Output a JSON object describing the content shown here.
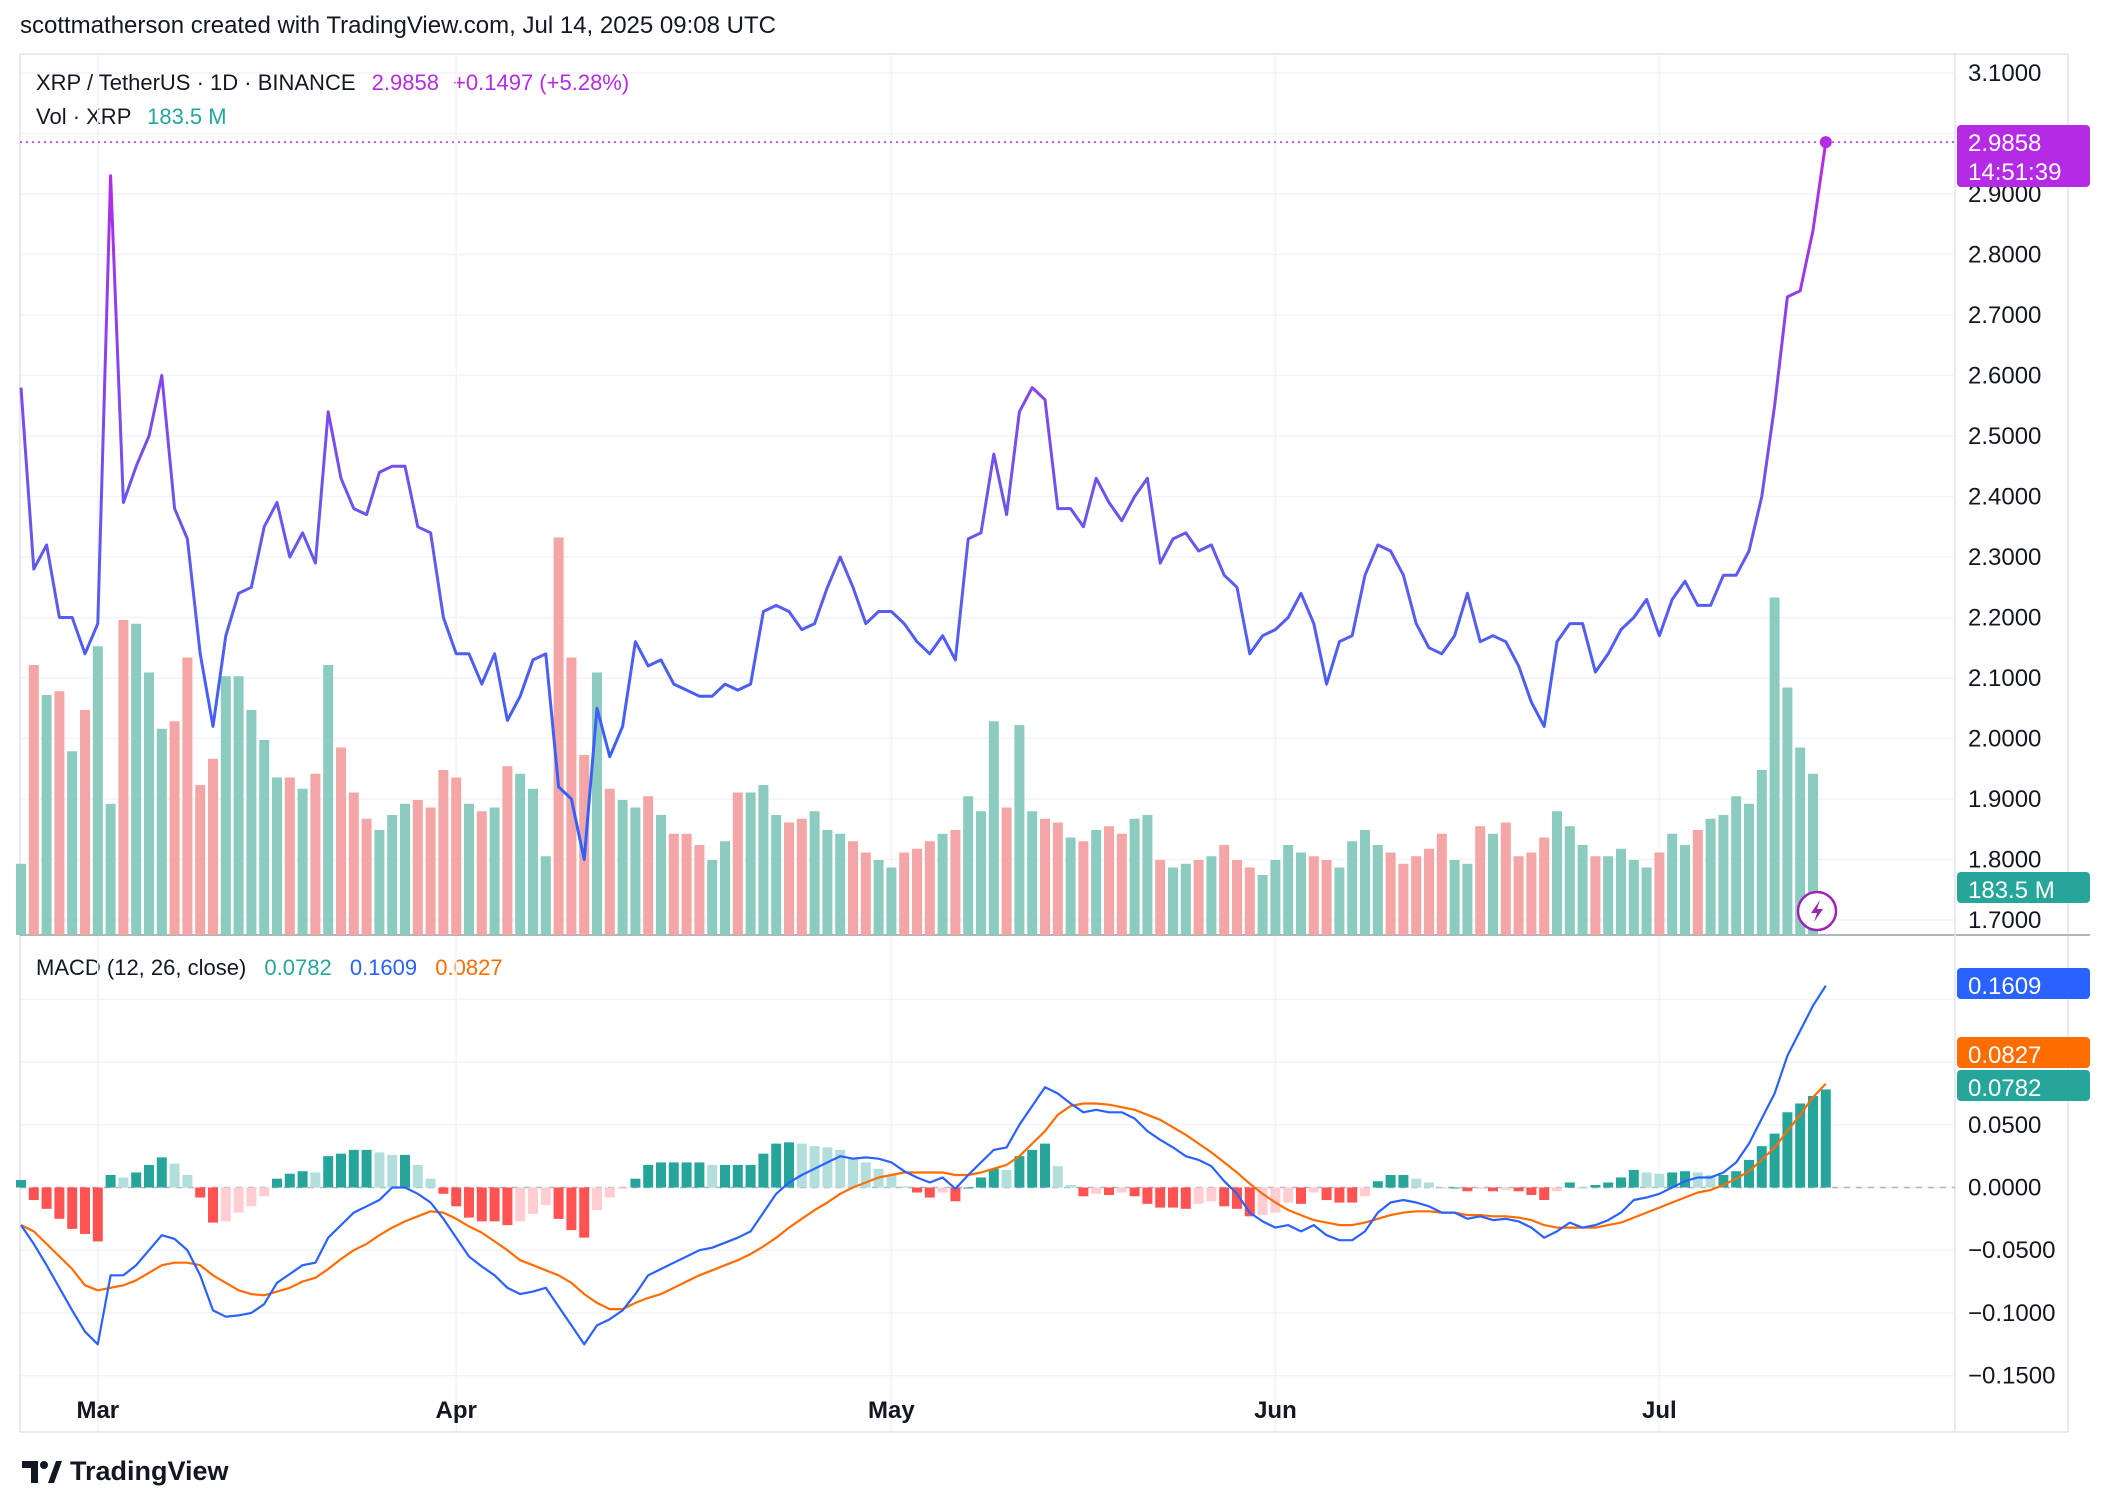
{
  "header": {
    "credit": "scottmatherson created with TradingView.com, Jul 14, 2025 09:08 UTC"
  },
  "legend": {
    "symbol": "XRP / TetherUS · 1D · BINANCE",
    "last_price": "2.9858",
    "change": "+0.1497 (+5.28%)",
    "volume_label": "Vol · XRP",
    "volume_value": "183.5 M"
  },
  "macd_legend": {
    "label": "MACD (12, 26, close)",
    "histogram": "0.0782",
    "macd": "0.1609",
    "signal": "0.0827"
  },
  "price_tags": {
    "price": "2.9858",
    "countdown": "14:51:39",
    "volume": "183.5 M",
    "macd": "0.1609",
    "signal": "0.0827",
    "histogram": "0.0782"
  },
  "footer": {
    "logo_text": "TradingView"
  },
  "colors": {
    "price_line_purple": "#8B3CF7",
    "price_line_blue": "#2962FF",
    "price_tag": "#B52BE5",
    "vol_up": "#8CCBBF",
    "vol_down": "#F4A5A5",
    "hist_up_strong": "#26A69A",
    "hist_up_weak": "#B2DFDB",
    "hist_down_strong": "#FF5252",
    "hist_down_weak": "#FFCDD2",
    "macd_line": "#2962FF",
    "signal_line": "#FF6D00"
  },
  "chart_data": [
    {
      "type": "line",
      "title": "XRP / TetherUS · 1D · BINANCE",
      "x_ticks": [
        "Mar",
        "Apr",
        "May",
        "Jun",
        "Jul"
      ],
      "y_ticks": [
        "3.1000",
        "2.9000",
        "2.8000",
        "2.7000",
        "2.6000",
        "2.5000",
        "2.4000",
        "2.3000",
        "2.2000",
        "2.1000",
        "2.0000",
        "1.9000",
        "1.8000",
        "1.7000"
      ],
      "ylim": [
        1.7,
        3.1
      ],
      "series": [
        {
          "name": "XRP / TetherUS",
          "start_date": "2025-02-23",
          "values": [
            2.58,
            2.28,
            2.32,
            2.2,
            2.2,
            2.14,
            2.19,
            2.93,
            2.39,
            2.45,
            2.5,
            2.6,
            2.38,
            2.33,
            2.14,
            2.02,
            2.17,
            2.24,
            2.25,
            2.35,
            2.39,
            2.3,
            2.34,
            2.29,
            2.54,
            2.43,
            2.38,
            2.37,
            2.44,
            2.45,
            2.45,
            2.35,
            2.34,
            2.2,
            2.14,
            2.14,
            2.09,
            2.14,
            2.03,
            2.07,
            2.13,
            2.14,
            1.92,
            1.9,
            1.8,
            2.05,
            1.97,
            2.02,
            2.16,
            2.12,
            2.13,
            2.09,
            2.08,
            2.07,
            2.07,
            2.09,
            2.08,
            2.09,
            2.21,
            2.22,
            2.21,
            2.18,
            2.19,
            2.25,
            2.3,
            2.25,
            2.19,
            2.21,
            2.21,
            2.19,
            2.16,
            2.14,
            2.17,
            2.13,
            2.33,
            2.34,
            2.47,
            2.37,
            2.54,
            2.58,
            2.56,
            2.38,
            2.38,
            2.35,
            2.43,
            2.39,
            2.36,
            2.4,
            2.43,
            2.29,
            2.33,
            2.34,
            2.31,
            2.32,
            2.27,
            2.25,
            2.14,
            2.17,
            2.18,
            2.2,
            2.24,
            2.19,
            2.09,
            2.16,
            2.17,
            2.27,
            2.32,
            2.31,
            2.27,
            2.19,
            2.15,
            2.14,
            2.17,
            2.24,
            2.16,
            2.17,
            2.16,
            2.12,
            2.06,
            2.02,
            2.16,
            2.19,
            2.19,
            2.11,
            2.14,
            2.18,
            2.2,
            2.23,
            2.17,
            2.23,
            2.26,
            2.22,
            2.22,
            2.27,
            2.27,
            2.31,
            2.4,
            2.55,
            2.73,
            2.74,
            2.84,
            2.9858
          ]
        }
      ]
    },
    {
      "type": "bar",
      "title": "Vol · XRP",
      "unit": "M",
      "last_value": 183.5,
      "series": [
        {
          "name": "Vol · XRP",
          "values": [
            95,
            360,
            320,
            325,
            245,
            300,
            385,
            175,
            420,
            415,
            350,
            275,
            285,
            370,
            200,
            235,
            345,
            345,
            300,
            260,
            210,
            210,
            195,
            215,
            360,
            250,
            190,
            155,
            140,
            160,
            175,
            180,
            170,
            220,
            210,
            175,
            165,
            170,
            225,
            215,
            195,
            105,
            530,
            370,
            240,
            350,
            195,
            180,
            170,
            185,
            160,
            135,
            135,
            120,
            100,
            125,
            190,
            190,
            200,
            160,
            150,
            155,
            165,
            140,
            135,
            125,
            110,
            100,
            90,
            110,
            115,
            125,
            135,
            140,
            185,
            165,
            285,
            170,
            280,
            165,
            155,
            150,
            130,
            125,
            140,
            145,
            135,
            155,
            160,
            100,
            90,
            95,
            100,
            105,
            120,
            100,
            90,
            80,
            100,
            120,
            110,
            105,
            100,
            90,
            125,
            140,
            120,
            110,
            95,
            105,
            115,
            135,
            100,
            95,
            145,
            135,
            150,
            105,
            110,
            130,
            165,
            145,
            120,
            105,
            105,
            115,
            100,
            90,
            110,
            135,
            120,
            140,
            155,
            160,
            185,
            175,
            220,
            450,
            330,
            250,
            215
          ]
        }
      ]
    },
    {
      "type": "line",
      "title": "MACD (12, 26, close)",
      "y_ticks": [
        "0.1609",
        "0.0827",
        "0.0782",
        "0.0500",
        "0.0000",
        "−0.0500",
        "−0.1000",
        "−0.1500"
      ],
      "ylim": [
        -0.15,
        0.16
      ],
      "series": [
        {
          "name": "MACD",
          "values": [
            -0.03,
            -0.045,
            -0.062,
            -0.08,
            -0.098,
            -0.115,
            -0.125,
            -0.07,
            -0.07,
            -0.062,
            -0.05,
            -0.038,
            -0.041,
            -0.05,
            -0.07,
            -0.098,
            -0.103,
            -0.102,
            -0.1,
            -0.093,
            -0.076,
            -0.069,
            -0.062,
            -0.06,
            -0.04,
            -0.03,
            -0.02,
            -0.015,
            -0.01,
            0.0,
            0.0,
            -0.005,
            -0.012,
            -0.025,
            -0.04,
            -0.055,
            -0.063,
            -0.07,
            -0.08,
            -0.085,
            -0.083,
            -0.08,
            -0.095,
            -0.11,
            -0.125,
            -0.11,
            -0.105,
            -0.098,
            -0.085,
            -0.07,
            -0.065,
            -0.06,
            -0.055,
            -0.05,
            -0.048,
            -0.044,
            -0.04,
            -0.035,
            -0.02,
            -0.005,
            0.004,
            0.01,
            0.015,
            0.02,
            0.025,
            0.023,
            0.024,
            0.023,
            0.02,
            0.013,
            0.008,
            0.004,
            0.008,
            -0.001,
            0.01,
            0.02,
            0.03,
            0.032,
            0.05,
            0.065,
            0.08,
            0.075,
            0.067,
            0.06,
            0.062,
            0.06,
            0.06,
            0.055,
            0.045,
            0.038,
            0.032,
            0.025,
            0.022,
            0.017,
            0.005,
            -0.005,
            -0.02,
            -0.027,
            -0.032,
            -0.03,
            -0.035,
            -0.03,
            -0.038,
            -0.042,
            -0.042,
            -0.035,
            -0.02,
            -0.012,
            -0.01,
            -0.012,
            -0.015,
            -0.02,
            -0.02,
            -0.025,
            -0.023,
            -0.026,
            -0.025,
            -0.027,
            -0.032,
            -0.04,
            -0.035,
            -0.028,
            -0.032,
            -0.03,
            -0.026,
            -0.02,
            -0.01,
            -0.008,
            -0.005,
            0.0,
            0.005,
            0.008,
            0.008,
            0.012,
            0.02,
            0.035,
            0.055,
            0.075,
            0.105,
            0.125,
            0.145,
            0.1609
          ]
        },
        {
          "name": "Signal",
          "values": [
            -0.03,
            -0.035,
            -0.045,
            -0.055,
            -0.065,
            -0.078,
            -0.082,
            -0.08,
            -0.078,
            -0.074,
            -0.068,
            -0.062,
            -0.06,
            -0.06,
            -0.062,
            -0.07,
            -0.076,
            -0.082,
            -0.085,
            -0.086,
            -0.083,
            -0.08,
            -0.075,
            -0.072,
            -0.065,
            -0.057,
            -0.05,
            -0.045,
            -0.038,
            -0.032,
            -0.027,
            -0.023,
            -0.019,
            -0.02,
            -0.025,
            -0.031,
            -0.036,
            -0.043,
            -0.05,
            -0.058,
            -0.062,
            -0.066,
            -0.07,
            -0.076,
            -0.085,
            -0.092,
            -0.097,
            -0.097,
            -0.092,
            -0.088,
            -0.085,
            -0.08,
            -0.075,
            -0.07,
            -0.066,
            -0.062,
            -0.058,
            -0.053,
            -0.047,
            -0.04,
            -0.032,
            -0.025,
            -0.018,
            -0.012,
            -0.005,
            0.0,
            0.004,
            0.008,
            0.01,
            0.012,
            0.012,
            0.012,
            0.012,
            0.01,
            0.01,
            0.012,
            0.015,
            0.018,
            0.025,
            0.035,
            0.045,
            0.058,
            0.065,
            0.067,
            0.067,
            0.066,
            0.064,
            0.062,
            0.058,
            0.054,
            0.048,
            0.042,
            0.035,
            0.028,
            0.02,
            0.012,
            0.003,
            -0.005,
            -0.012,
            -0.018,
            -0.022,
            -0.026,
            -0.028,
            -0.03,
            -0.03,
            -0.028,
            -0.025,
            -0.022,
            -0.02,
            -0.019,
            -0.019,
            -0.02,
            -0.02,
            -0.022,
            -0.022,
            -0.023,
            -0.023,
            -0.024,
            -0.026,
            -0.03,
            -0.032,
            -0.032,
            -0.032,
            -0.032,
            -0.03,
            -0.028,
            -0.024,
            -0.02,
            -0.016,
            -0.012,
            -0.008,
            -0.004,
            -0.002,
            0.002,
            0.007,
            0.013,
            0.022,
            0.032,
            0.045,
            0.058,
            0.072,
            0.0827
          ]
        },
        {
          "name": "Histogram",
          "type": "bar",
          "values": [
            0.006,
            -0.01,
            -0.017,
            -0.025,
            -0.033,
            -0.037,
            -0.043,
            0.01,
            0.008,
            0.012,
            0.018,
            0.024,
            0.019,
            0.01,
            -0.008,
            -0.028,
            -0.027,
            -0.02,
            -0.015,
            -0.007,
            0.007,
            0.011,
            0.013,
            0.012,
            0.025,
            0.027,
            0.03,
            0.03,
            0.028,
            0.026,
            0.026,
            0.018,
            0.007,
            -0.005,
            -0.015,
            -0.024,
            -0.027,
            -0.027,
            -0.03,
            -0.027,
            -0.021,
            -0.014,
            -0.025,
            -0.034,
            -0.04,
            -0.018,
            -0.008,
            -0.001,
            0.007,
            0.018,
            0.02,
            0.02,
            0.02,
            0.02,
            0.018,
            0.018,
            0.018,
            0.018,
            0.027,
            0.035,
            0.036,
            0.035,
            0.033,
            0.032,
            0.03,
            0.023,
            0.02,
            0.015,
            0.01,
            0.001,
            -0.004,
            -0.008,
            -0.004,
            -0.011,
            0.0,
            0.008,
            0.015,
            0.014,
            0.025,
            0.03,
            0.035,
            0.017,
            0.002,
            -0.007,
            -0.005,
            -0.006,
            -0.004,
            -0.007,
            -0.013,
            -0.016,
            -0.016,
            -0.017,
            -0.013,
            -0.011,
            -0.015,
            -0.017,
            -0.023,
            -0.022,
            -0.02,
            -0.012,
            -0.013,
            -0.004,
            -0.01,
            -0.012,
            -0.012,
            -0.007,
            0.005,
            0.01,
            0.01,
            0.007,
            0.004,
            0.0,
            0.0,
            -0.003,
            -0.001,
            -0.003,
            -0.002,
            -0.003,
            -0.006,
            -0.01,
            -0.003,
            0.004,
            0.0,
            0.002,
            0.004,
            0.008,
            0.014,
            0.012,
            0.011,
            0.012,
            0.013,
            0.012,
            0.01,
            0.01,
            0.013,
            0.022,
            0.033,
            0.043,
            0.06,
            0.067,
            0.073,
            0.0782
          ]
        }
      ]
    }
  ]
}
